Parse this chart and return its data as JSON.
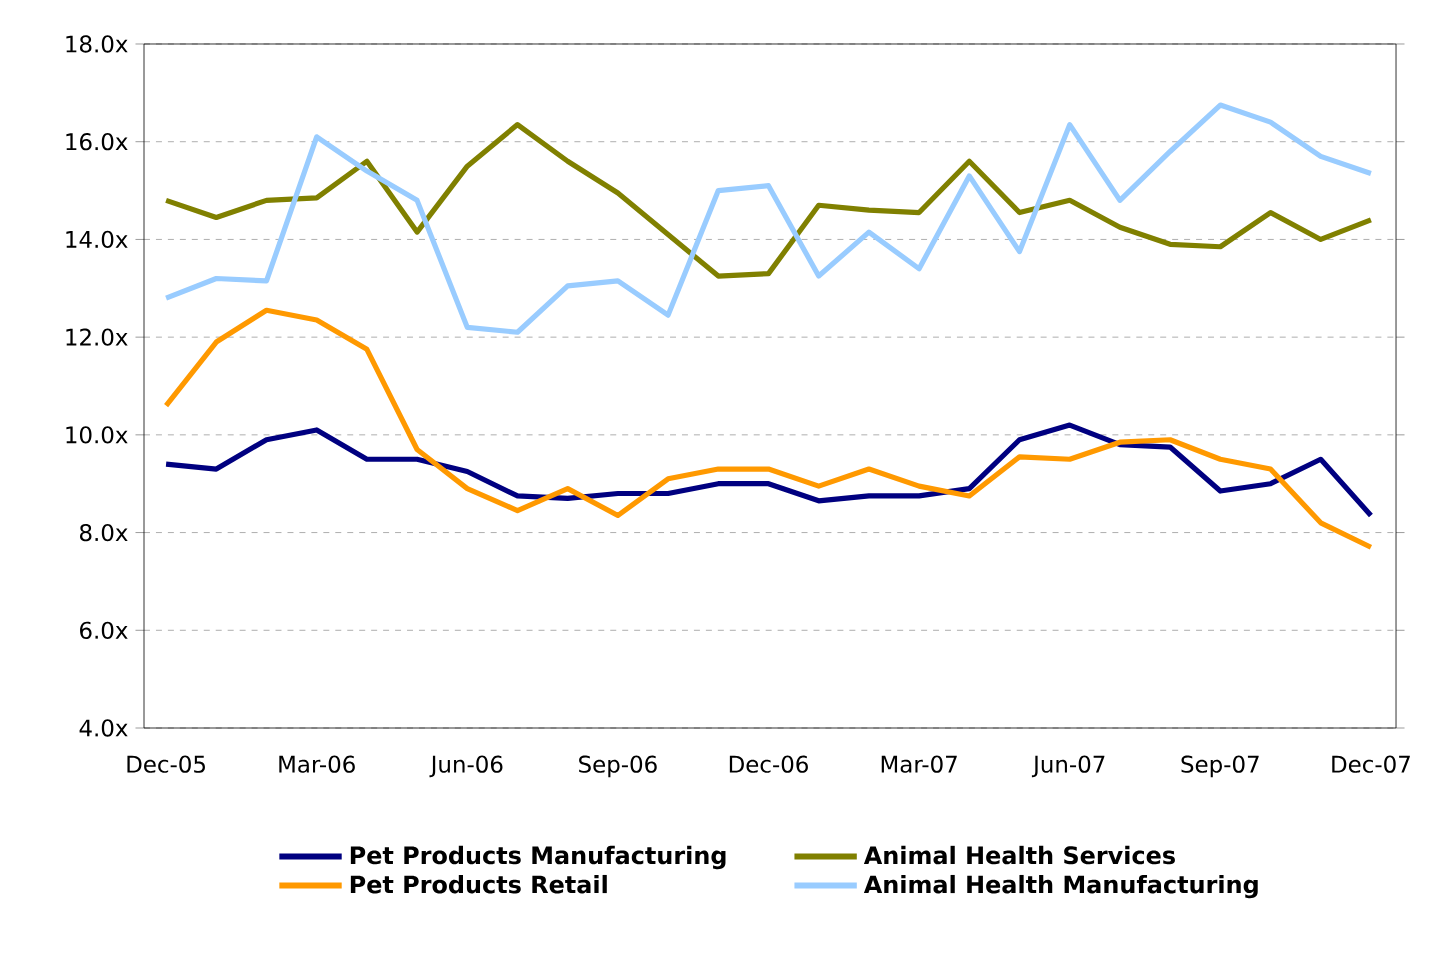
{
  "chart_data": {
    "type": "line",
    "categories": [
      "Dec-05",
      null,
      null,
      "Mar-06",
      null,
      null,
      "Jun-06",
      null,
      null,
      "Sep-06",
      null,
      null,
      "Dec-06",
      null,
      null,
      "Mar-07",
      null,
      null,
      "Jun-07",
      null,
      null,
      "Sep-07",
      null,
      null,
      "Dec-07"
    ],
    "series": [
      {
        "name": "Pet Products Manufacturing",
        "color": "#000080",
        "values": [
          9.4,
          9.3,
          9.9,
          10.1,
          9.5,
          9.5,
          9.25,
          8.75,
          8.7,
          8.8,
          8.8,
          9.0,
          9.0,
          8.65,
          8.75,
          8.75,
          8.9,
          9.9,
          10.2,
          9.8,
          9.75,
          8.85,
          9.0,
          9.5,
          8.35
        ]
      },
      {
        "name": "Animal Health Services",
        "color": "#808000",
        "values": [
          14.8,
          14.45,
          14.8,
          14.85,
          15.6,
          14.15,
          15.5,
          16.35,
          15.6,
          14.95,
          14.1,
          13.25,
          13.3,
          14.7,
          14.6,
          14.55,
          15.6,
          14.55,
          14.8,
          14.25,
          13.9,
          13.85,
          14.55,
          14.0,
          14.4
        ]
      },
      {
        "name": "Pet Products Retail",
        "color": "#ff9900",
        "values": [
          10.6,
          11.9,
          12.55,
          12.35,
          11.75,
          9.7,
          8.9,
          8.45,
          8.9,
          8.35,
          9.1,
          9.3,
          9.3,
          8.95,
          9.3,
          8.95,
          8.75,
          9.55,
          9.5,
          9.85,
          9.9,
          9.5,
          9.3,
          8.2,
          7.7
        ]
      },
      {
        "name": "Animal Health Manufacturing",
        "color": "#99ccff",
        "values": [
          12.8,
          13.2,
          13.15,
          16.1,
          15.4,
          14.8,
          12.2,
          12.1,
          13.05,
          13.15,
          12.45,
          15.0,
          15.1,
          13.25,
          14.15,
          13.4,
          15.3,
          13.75,
          16.35,
          14.8,
          15.8,
          16.75,
          16.4,
          15.7,
          15.35
        ]
      }
    ],
    "ylim": [
      4,
      18
    ],
    "yticks": [
      {
        "value": 4,
        "label": "4.0x"
      },
      {
        "value": 6,
        "label": "6.0x"
      },
      {
        "value": 8,
        "label": "8.0x"
      },
      {
        "value": 10,
        "label": "10.0x"
      },
      {
        "value": 12,
        "label": "12.0x"
      },
      {
        "value": 14,
        "label": "14.0x"
      },
      {
        "value": 16,
        "label": "16.0x"
      },
      {
        "value": 18,
        "label": "18.0x"
      }
    ],
    "grid": "y",
    "legend": "bottom",
    "marker": "none",
    "line_style": "solid"
  }
}
